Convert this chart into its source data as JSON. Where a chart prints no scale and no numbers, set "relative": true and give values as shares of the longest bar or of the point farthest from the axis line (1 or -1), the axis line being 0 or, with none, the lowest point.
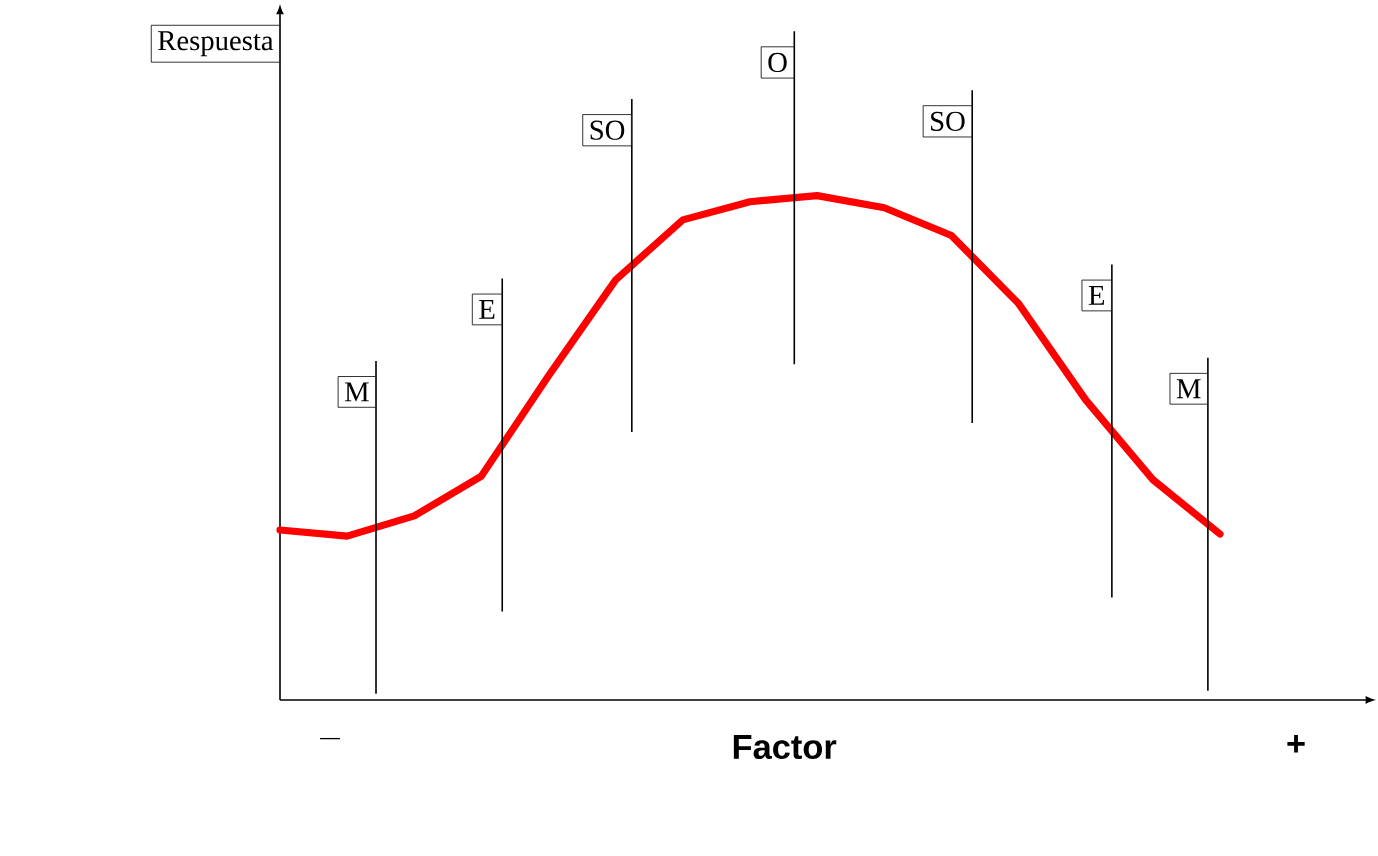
{
  "chart_data": {
    "type": "line",
    "relative": true,
    "xlabel": "Factor",
    "ylabel": "Respuesta",
    "color": "#ff0000",
    "categories": [
      null,
      null,
      null,
      null,
      null,
      null,
      null,
      null,
      null,
      null,
      null,
      null,
      null,
      null,
      null
    ],
    "values": [
      0.337,
      0.325,
      0.365,
      0.444,
      0.643,
      0.833,
      0.952,
      0.988,
      1,
      0.976,
      0.921,
      0.786,
      0.595,
      0.437,
      0.329
    ],
    "annotations": [
      "_",
      "+",
      "M",
      "E",
      "SO",
      "O",
      "SO",
      "E",
      "M"
    ]
  }
}
